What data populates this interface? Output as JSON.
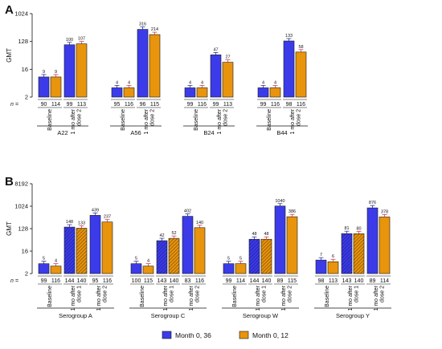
{
  "colors": {
    "blue": "#3b3bea",
    "orange": "#e8940c",
    "outline": "#1a1a1a",
    "error_bar": "#d0243a"
  },
  "legend": [
    {
      "label": "Month 0, 36",
      "color": "#3b3bea"
    },
    {
      "label": "Month 0, 12",
      "color": "#e8940c"
    }
  ],
  "chart_data": [
    {
      "panel": "A",
      "type": "bar",
      "ylabel": "GMT",
      "y_scale": "log2",
      "ylim": [
        2,
        1024
      ],
      "yticks": [
        "2",
        "16",
        "128",
        "1024"
      ],
      "n_label": "n =",
      "groups": [
        {
          "name": "A22",
          "timepoints": [
            "Baseline",
            "1 mo after dose 2"
          ],
          "bars": [
            {
              "series": "Month 0, 36",
              "tp": 0,
              "value": 9,
              "label": "9",
              "n": "90"
            },
            {
              "series": "Month 0, 12",
              "tp": 0,
              "value": 9,
              "label": "9",
              "n": "114"
            },
            {
              "series": "Month 0, 36",
              "tp": 1,
              "value": 100,
              "label": "100",
              "n": "99"
            },
            {
              "series": "Month 0, 12",
              "tp": 1,
              "value": 107,
              "label": "107",
              "n": "113"
            }
          ]
        },
        {
          "name": "A56",
          "timepoints": [
            "Baseline",
            "1 mo after dose 2"
          ],
          "bars": [
            {
              "series": "Month 0, 36",
              "tp": 0,
              "value": 4,
              "label": "4",
              "n": "95"
            },
            {
              "series": "Month 0, 12",
              "tp": 0,
              "value": 4,
              "label": "4",
              "n": "116"
            },
            {
              "series": "Month 0, 36",
              "tp": 1,
              "value": 316,
              "label": "316",
              "n": "96"
            },
            {
              "series": "Month 0, 12",
              "tp": 1,
              "value": 214,
              "label": "214",
              "n": "115"
            }
          ]
        },
        {
          "name": "B24",
          "timepoints": [
            "Baseline",
            "1 mo after dose 2"
          ],
          "bars": [
            {
              "series": "Month 0, 36",
              "tp": 0,
              "value": 4,
              "label": "4",
              "n": "99"
            },
            {
              "series": "Month 0, 12",
              "tp": 0,
              "value": 4,
              "label": "4",
              "n": "116"
            },
            {
              "series": "Month 0, 36",
              "tp": 1,
              "value": 47,
              "label": "47",
              "n": "99"
            },
            {
              "series": "Month 0, 12",
              "tp": 1,
              "value": 27,
              "label": "27",
              "n": "113"
            }
          ]
        },
        {
          "name": "B44",
          "timepoints": [
            "Baseline",
            "1 mo after dose 2"
          ],
          "bars": [
            {
              "series": "Month 0, 36",
              "tp": 0,
              "value": 4,
              "label": "4",
              "n": "99"
            },
            {
              "series": "Month 0, 12",
              "tp": 0,
              "value": 4,
              "label": "4",
              "n": "116"
            },
            {
              "series": "Month 0, 36",
              "tp": 1,
              "value": 133,
              "label": "133",
              "n": "98"
            },
            {
              "series": "Month 0, 12",
              "tp": 1,
              "value": 58,
              "label": "58",
              "n": "116"
            }
          ]
        }
      ]
    },
    {
      "panel": "B",
      "type": "bar",
      "ylabel": "GMT",
      "y_scale": "log2",
      "ylim": [
        2,
        8192
      ],
      "yticks": [
        "2",
        "16",
        "128",
        "1024",
        "8192"
      ],
      "n_label": "n =",
      "hatched_timepoint": "1 mo after dose 1",
      "groups": [
        {
          "name": "Serogroup A",
          "timepoints": [
            "Baseline",
            "1 mo after dose 1",
            "1 mo after dose 2"
          ],
          "bars": [
            {
              "series": "Month 0, 36",
              "tp": 0,
              "value": 5,
              "label": "5",
              "n": "99"
            },
            {
              "series": "Month 0, 12",
              "tp": 0,
              "value": 4,
              "label": "4",
              "n": "116"
            },
            {
              "series": "Month 0, 36",
              "tp": 1,
              "value": 148,
              "label": "148",
              "n": "144"
            },
            {
              "series": "Month 0, 12",
              "tp": 1,
              "value": 133,
              "label": "133",
              "n": "140"
            },
            {
              "series": "Month 0, 36",
              "tp": 2,
              "value": 439,
              "label": "439",
              "n": "95"
            },
            {
              "series": "Month 0, 12",
              "tp": 2,
              "value": 237,
              "label": "237",
              "n": "116"
            }
          ]
        },
        {
          "name": "Serogroup C",
          "timepoints": [
            "Baseline",
            "1 mo after dose 1",
            "1 mo after dose 2"
          ],
          "bars": [
            {
              "series": "Month 0, 36",
              "tp": 0,
              "value": 5,
              "label": "5",
              "n": "100"
            },
            {
              "series": "Month 0, 12",
              "tp": 0,
              "value": 4,
              "label": "4",
              "n": "115"
            },
            {
              "series": "Month 0, 36",
              "tp": 1,
              "value": 42,
              "label": "42",
              "n": "143"
            },
            {
              "series": "Month 0, 12",
              "tp": 1,
              "value": 52,
              "label": "52",
              "n": "140"
            },
            {
              "series": "Month 0, 36",
              "tp": 2,
              "value": 402,
              "label": "402",
              "n": "83"
            },
            {
              "series": "Month 0, 12",
              "tp": 2,
              "value": 140,
              "label": "140",
              "n": "116"
            }
          ]
        },
        {
          "name": "Serogroup W",
          "timepoints": [
            "Baseline",
            "1 mo after dose 1",
            "1 mo after dose 2"
          ],
          "bars": [
            {
              "series": "Month 0, 36",
              "tp": 0,
              "value": 5,
              "label": "5",
              "n": "99"
            },
            {
              "series": "Month 0, 12",
              "tp": 0,
              "value": 5,
              "label": "5",
              "n": "114"
            },
            {
              "series": "Month 0, 36",
              "tp": 1,
              "value": 48,
              "label": "48",
              "n": "144"
            },
            {
              "series": "Month 0, 12",
              "tp": 1,
              "value": 48,
              "label": "48",
              "n": "140"
            },
            {
              "series": "Month 0, 36",
              "tp": 2,
              "value": 1040,
              "label": "1040",
              "n": "89"
            },
            {
              "series": "Month 0, 12",
              "tp": 2,
              "value": 386,
              "label": "386",
              "n": "115"
            }
          ]
        },
        {
          "name": "Serogroup Y",
          "timepoints": [
            "Baseline",
            "1 mo after dose 1",
            "1 mo after dose 2"
          ],
          "bars": [
            {
              "series": "Month 0, 36",
              "tp": 0,
              "value": 7,
              "label": "7",
              "n": "98"
            },
            {
              "series": "Month 0, 12",
              "tp": 0,
              "value": 6,
              "label": "6",
              "n": "113"
            },
            {
              "series": "Month 0, 36",
              "tp": 1,
              "value": 81,
              "label": "81",
              "n": "143"
            },
            {
              "series": "Month 0, 12",
              "tp": 1,
              "value": 80,
              "label": "80",
              "n": "140"
            },
            {
              "series": "Month 0, 36",
              "tp": 2,
              "value": 876,
              "label": "876",
              "n": "89"
            },
            {
              "series": "Month 0, 12",
              "tp": 2,
              "value": 378,
              "label": "378",
              "n": "114"
            }
          ]
        }
      ]
    }
  ]
}
